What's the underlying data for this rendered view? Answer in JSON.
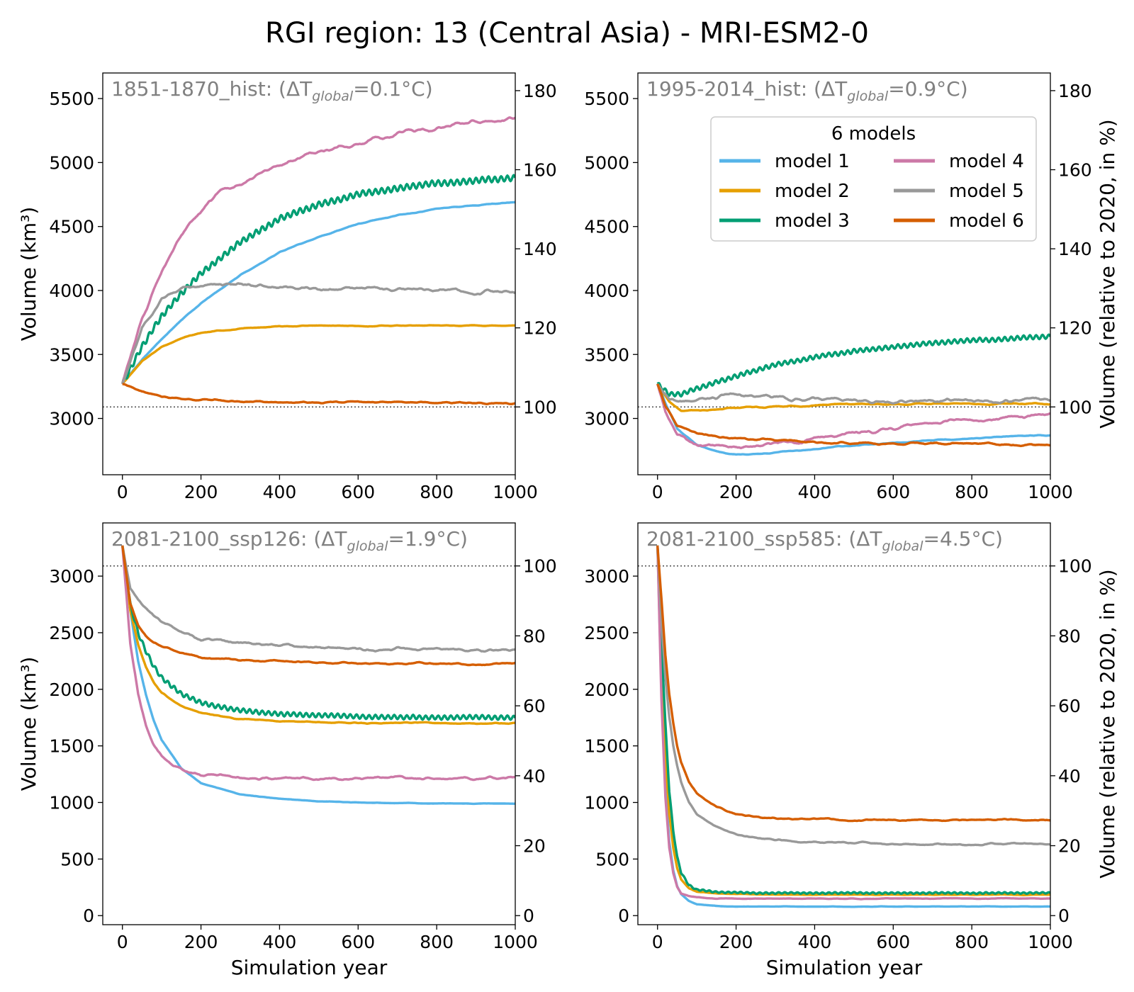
{
  "figure_title": "RGI region: 13 (Central Asia) - MRI-ESM2-0",
  "colors": {
    "model 1": "#56b4e9",
    "model 2": "#e69f00",
    "model 3": "#009e73",
    "model 4": "#cc79a7",
    "model 5": "#999999",
    "model 6": "#d55e00",
    "panel_title": "#808080",
    "reference_line": "#555555"
  },
  "legend": {
    "title": "6 models",
    "placement": "upper-right of top-right panel",
    "entries": [
      "model 1",
      "model 2",
      "model 3",
      "model 4",
      "model 5",
      "model 6"
    ]
  },
  "chart_data": [
    {
      "type": "line",
      "panel": "top-left",
      "title_prefix": "1851-1870_hist: (ΔT",
      "title_sub": "global",
      "title_suffix": "=0.1°C)",
      "xlabel": "",
      "ylabel": "Volume (km³)",
      "ylabel_right": "",
      "xlim": [
        -50,
        1000
      ],
      "ylim": [
        2560,
        5700
      ],
      "xticks": [
        0,
        200,
        400,
        600,
        800,
        1000
      ],
      "yticks": [
        3000,
        3500,
        4000,
        4500,
        5000,
        5500
      ],
      "right_ticks": [
        100,
        120,
        140,
        160,
        180
      ],
      "reference_volume_km3": 3090,
      "reference_label": "100",
      "series": [
        {
          "name": "model 1",
          "x": [
            0,
            50,
            100,
            150,
            200,
            300,
            400,
            500,
            600,
            700,
            800,
            900,
            1000
          ],
          "y": [
            3270,
            3460,
            3620,
            3770,
            3900,
            4120,
            4300,
            4420,
            4520,
            4590,
            4640,
            4670,
            4690
          ],
          "noise": 5,
          "osc": 0
        },
        {
          "name": "model 2",
          "x": [
            0,
            50,
            100,
            150,
            200,
            300,
            400,
            500,
            600,
            700,
            800,
            900,
            1000
          ],
          "y": [
            3270,
            3450,
            3560,
            3630,
            3670,
            3700,
            3720,
            3725,
            3725,
            3725,
            3725,
            3725,
            3725
          ],
          "noise": 5,
          "osc": 0
        },
        {
          "name": "model 3",
          "x": [
            0,
            50,
            100,
            150,
            200,
            300,
            400,
            500,
            600,
            700,
            800,
            900,
            1000
          ],
          "y": [
            3270,
            3560,
            3800,
            3980,
            4130,
            4380,
            4560,
            4670,
            4750,
            4800,
            4840,
            4860,
            4880
          ],
          "noise": 5,
          "osc": 22
        },
        {
          "name": "model 4",
          "x": [
            0,
            50,
            100,
            150,
            200,
            250,
            300,
            400,
            500,
            600,
            700,
            800,
            900,
            1000
          ],
          "y": [
            3270,
            3800,
            4150,
            4420,
            4620,
            4760,
            4840,
            4970,
            5080,
            5150,
            5220,
            5270,
            5310,
            5350
          ],
          "noise": 25,
          "osc": 0
        },
        {
          "name": "model 5",
          "x": [
            0,
            50,
            100,
            150,
            200,
            250,
            300,
            400,
            500,
            600,
            700,
            800,
            900,
            1000
          ],
          "y": [
            3270,
            3720,
            3930,
            4000,
            4040,
            4070,
            4060,
            4030,
            4010,
            4010,
            4010,
            4010,
            4000,
            4000
          ],
          "noise": 22,
          "osc": 0
        },
        {
          "name": "model 6",
          "x": [
            0,
            20,
            50,
            100,
            200,
            300,
            400,
            600,
            800,
            1000
          ],
          "y": [
            3270,
            3250,
            3210,
            3170,
            3140,
            3135,
            3130,
            3125,
            3125,
            3120
          ],
          "noise": 10,
          "osc": 0
        }
      ]
    },
    {
      "type": "line",
      "panel": "top-right",
      "title_prefix": "1995-2014_hist: (ΔT",
      "title_sub": "global",
      "title_suffix": "=0.9°C)",
      "xlabel": "",
      "ylabel": "",
      "ylabel_right": "Volume (relative to 2020, in %)",
      "xlim": [
        -50,
        1000
      ],
      "ylim": [
        2560,
        5700
      ],
      "xticks": [
        0,
        200,
        400,
        600,
        800,
        1000
      ],
      "yticks": [
        3000,
        3500,
        4000,
        4500,
        5000,
        5500
      ],
      "right_ticks": [
        100,
        120,
        140,
        160,
        180
      ],
      "reference_volume_km3": 3090,
      "reference_label": "100",
      "series": [
        {
          "name": "model 1",
          "x": [
            0,
            20,
            50,
            100,
            150,
            200,
            250,
            300,
            400,
            500,
            600,
            700,
            800,
            900,
            1000
          ],
          "y": [
            3270,
            3120,
            2920,
            2790,
            2740,
            2720,
            2720,
            2735,
            2760,
            2790,
            2810,
            2830,
            2845,
            2860,
            2870
          ],
          "noise": 6,
          "osc": 0
        },
        {
          "name": "model 2",
          "x": [
            0,
            30,
            60,
            100,
            200,
            300,
            400,
            500,
            600,
            800,
            1000
          ],
          "y": [
            3270,
            3130,
            3060,
            3060,
            3080,
            3095,
            3105,
            3110,
            3110,
            3115,
            3115
          ],
          "noise": 8,
          "osc": 0
        },
        {
          "name": "model 3",
          "x": [
            0,
            30,
            60,
            100,
            200,
            300,
            400,
            500,
            600,
            700,
            800,
            900,
            1000
          ],
          "y": [
            3270,
            3190,
            3190,
            3230,
            3330,
            3420,
            3480,
            3530,
            3560,
            3590,
            3610,
            3625,
            3640
          ],
          "noise": 5,
          "osc": 16
        },
        {
          "name": "model 4",
          "x": [
            0,
            20,
            50,
            100,
            150,
            200,
            300,
            400,
            500,
            600,
            700,
            800,
            900,
            1000
          ],
          "y": [
            3270,
            3060,
            2870,
            2800,
            2790,
            2790,
            2800,
            2830,
            2880,
            2920,
            2960,
            2990,
            3010,
            3030
          ],
          "noise": 22,
          "osc": 0
        },
        {
          "name": "model 5",
          "x": [
            0,
            30,
            60,
            100,
            200,
            300,
            400,
            500,
            600,
            800,
            1000
          ],
          "y": [
            3270,
            3130,
            3130,
            3150,
            3180,
            3170,
            3155,
            3145,
            3140,
            3140,
            3145
          ],
          "noise": 22,
          "osc": 0
        },
        {
          "name": "model 6",
          "x": [
            0,
            20,
            50,
            100,
            150,
            200,
            300,
            400,
            500,
            600,
            800,
            1000
          ],
          "y": [
            3270,
            3100,
            2950,
            2890,
            2860,
            2840,
            2830,
            2820,
            2810,
            2805,
            2800,
            2795
          ],
          "noise": 12,
          "osc": 0
        }
      ]
    },
    {
      "type": "line",
      "panel": "bottom-left",
      "title_prefix": "2081-2100_ssp126: (ΔT",
      "title_sub": "global",
      "title_suffix": "=1.9°C)",
      "xlabel": "Simulation year",
      "ylabel": "Volume (km³)",
      "ylabel_right": "",
      "xlim": [
        -50,
        1000
      ],
      "ylim": [
        -80,
        3470
      ],
      "xticks": [
        0,
        200,
        400,
        600,
        800,
        1000
      ],
      "yticks": [
        0,
        500,
        1000,
        1500,
        2000,
        2500,
        3000
      ],
      "right_ticks": [
        0,
        20,
        40,
        60,
        80,
        100
      ],
      "reference_volume_km3": 3090,
      "reference_label": "100",
      "series": [
        {
          "name": "model 1",
          "x": [
            0,
            20,
            40,
            60,
            80,
            100,
            150,
            200,
            300,
            400,
            500,
            600,
            700,
            800,
            900,
            1000
          ],
          "y": [
            3270,
            2700,
            2250,
            1950,
            1720,
            1550,
            1300,
            1170,
            1070,
            1030,
            1010,
            1000,
            995,
            992,
            990,
            990
          ],
          "noise": 3,
          "osc": 0
        },
        {
          "name": "model 2",
          "x": [
            0,
            20,
            40,
            60,
            80,
            100,
            150,
            200,
            300,
            400,
            500,
            600,
            800,
            1000
          ],
          "y": [
            3270,
            2700,
            2400,
            2200,
            2060,
            1970,
            1850,
            1790,
            1740,
            1720,
            1710,
            1700,
            1700,
            1700
          ],
          "noise": 8,
          "osc": 0
        },
        {
          "name": "model 3",
          "x": [
            0,
            20,
            40,
            60,
            80,
            100,
            150,
            200,
            300,
            400,
            500,
            600,
            800,
            1000
          ],
          "y": [
            3270,
            2750,
            2500,
            2340,
            2200,
            2100,
            1960,
            1880,
            1810,
            1780,
            1770,
            1760,
            1750,
            1750
          ],
          "noise": 5,
          "osc": 18
        },
        {
          "name": "model 4",
          "x": [
            0,
            20,
            40,
            60,
            80,
            100,
            130,
            160,
            200,
            300,
            400,
            600,
            800,
            1000
          ],
          "y": [
            3270,
            2400,
            1950,
            1680,
            1520,
            1420,
            1320,
            1270,
            1240,
            1220,
            1215,
            1215,
            1215,
            1215
          ],
          "noise": 18,
          "osc": 0
        },
        {
          "name": "model 5",
          "x": [
            0,
            20,
            40,
            60,
            80,
            100,
            150,
            200,
            300,
            400,
            500,
            600,
            800,
            1000
          ],
          "y": [
            3270,
            2900,
            2780,
            2700,
            2640,
            2590,
            2510,
            2450,
            2410,
            2390,
            2370,
            2360,
            2350,
            2340
          ],
          "noise": 20,
          "osc": 0
        },
        {
          "name": "model 6",
          "x": [
            0,
            20,
            40,
            60,
            80,
            100,
            150,
            200,
            300,
            400,
            500,
            600,
            800,
            1000
          ],
          "y": [
            3270,
            2750,
            2560,
            2470,
            2410,
            2370,
            2320,
            2280,
            2260,
            2250,
            2240,
            2230,
            2225,
            2225
          ],
          "noise": 12,
          "osc": 0
        }
      ]
    },
    {
      "type": "line",
      "panel": "bottom-right",
      "title_prefix": "2081-2100_ssp585: (ΔT",
      "title_sub": "global",
      "title_suffix": "=4.5°C)",
      "xlabel": "Simulation year",
      "ylabel": "",
      "ylabel_right": "Volume (relative to 2020, in %)",
      "xlim": [
        -50,
        1000
      ],
      "ylim": [
        -80,
        3470
      ],
      "xticks": [
        0,
        200,
        400,
        600,
        800,
        1000
      ],
      "yticks": [
        0,
        500,
        1000,
        1500,
        2000,
        2500,
        3000
      ],
      "right_ticks": [
        0,
        20,
        40,
        60,
        80,
        100
      ],
      "reference_volume_km3": 3090,
      "reference_label": "100",
      "series": [
        {
          "name": "model 1",
          "x": [
            0,
            10,
            20,
            30,
            40,
            50,
            60,
            80,
            100,
            150,
            200,
            300,
            500,
            1000
          ],
          "y": [
            3270,
            2000,
            1150,
            650,
            400,
            260,
            190,
            130,
            100,
            85,
            80,
            80,
            80,
            80
          ],
          "noise": 2,
          "osc": 0
        },
        {
          "name": "model 2",
          "x": [
            0,
            10,
            20,
            30,
            40,
            50,
            60,
            80,
            100,
            150,
            200,
            300,
            500,
            1000
          ],
          "y": [
            3270,
            2200,
            1400,
            900,
            600,
            420,
            320,
            240,
            210,
            195,
            190,
            185,
            185,
            185
          ],
          "noise": 3,
          "osc": 0
        },
        {
          "name": "model 3",
          "x": [
            0,
            10,
            20,
            30,
            40,
            50,
            60,
            80,
            100,
            150,
            200,
            300,
            500,
            1000
          ],
          "y": [
            3270,
            2400,
            1700,
            1100,
            750,
            520,
            380,
            270,
            230,
            210,
            205,
            200,
            200,
            200
          ],
          "noise": 3,
          "osc": 6
        },
        {
          "name": "model 4",
          "x": [
            0,
            10,
            20,
            30,
            40,
            50,
            60,
            80,
            100,
            150,
            200,
            300,
            500,
            1000
          ],
          "y": [
            3270,
            1900,
            1050,
            600,
            380,
            260,
            200,
            170,
            160,
            150,
            150,
            150,
            150,
            150
          ],
          "noise": 4,
          "osc": 0
        },
        {
          "name": "model 5",
          "x": [
            0,
            10,
            20,
            30,
            40,
            50,
            60,
            80,
            100,
            150,
            200,
            250,
            300,
            400,
            500,
            600,
            800,
            1000
          ],
          "y": [
            3270,
            2600,
            2100,
            1750,
            1500,
            1320,
            1180,
            1000,
            900,
            780,
            720,
            690,
            670,
            650,
            640,
            635,
            630,
            630
          ],
          "noise": 10,
          "osc": 0
        },
        {
          "name": "model 6",
          "x": [
            0,
            10,
            20,
            30,
            40,
            50,
            60,
            80,
            100,
            150,
            200,
            250,
            300,
            400,
            500,
            600,
            800,
            1000
          ],
          "y": [
            3270,
            2800,
            2300,
            1950,
            1700,
            1500,
            1350,
            1180,
            1080,
            960,
            900,
            875,
            860,
            850,
            845,
            845,
            845,
            845
          ],
          "noise": 10,
          "osc": 0
        }
      ]
    }
  ]
}
